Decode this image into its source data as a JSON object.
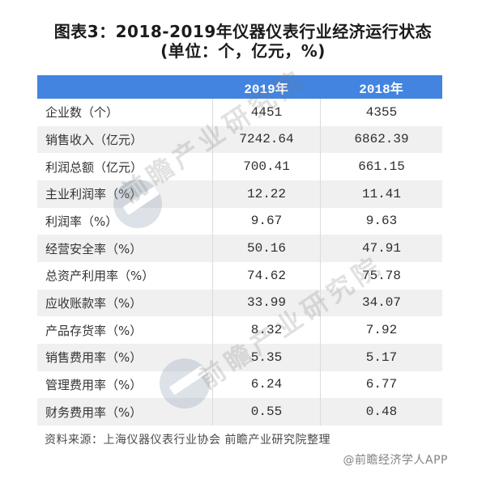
{
  "title": {
    "line1": "图表3：2018-2019年仪器仪表行业经济运行状态",
    "line2": "(单位：个，亿元，%)"
  },
  "table": {
    "headers": [
      "2019年",
      "2018年"
    ],
    "rows": [
      {
        "label": "企业数（个）",
        "y2019": "4451",
        "y2018": "4355"
      },
      {
        "label": "销售收入（亿元）",
        "y2019": "7242.64",
        "y2018": "6862.39"
      },
      {
        "label": "利润总额（亿元）",
        "y2019": "700.41",
        "y2018": "661.15"
      },
      {
        "label": "主业利润率（%）",
        "y2019": "12.22",
        "y2018": "11.41"
      },
      {
        "label": "利润率（%）",
        "y2019": "9.67",
        "y2018": "9.63"
      },
      {
        "label": "经营安全率（%）",
        "y2019": "50.16",
        "y2018": "47.91"
      },
      {
        "label": "总资产利用率（%）",
        "y2019": "74.62",
        "y2018": "75.78"
      },
      {
        "label": "应收账款率（%）",
        "y2019": "33.99",
        "y2018": "34.07"
      },
      {
        "label": "产品存货率（%）",
        "y2019": "8.32",
        "y2018": "7.92"
      },
      {
        "label": "销售费用率（%）",
        "y2019": "5.35",
        "y2018": "5.17"
      },
      {
        "label": "管理费用率（%）",
        "y2019": "6.24",
        "y2018": "6.77"
      },
      {
        "label": "财务费用率（%）",
        "y2019": "0.55",
        "y2018": "0.48"
      }
    ]
  },
  "footer": {
    "source": "资料来源：上海仪器仪表行业协会 前瞻产业研究院整理",
    "credit": "@前瞻经济学人APP"
  },
  "watermark": {
    "text": "前瞻产业研究院"
  },
  "colors": {
    "header_bg": "#4284E0",
    "header_text": "#FFFFFF",
    "stripe": "#F0F0F0",
    "divider": "#DBDBDB",
    "body_text": "#333333",
    "source_text": "#4A4A4A",
    "credit_text": "#828282"
  },
  "chart_data": {
    "type": "table",
    "title": "图表3：2018-2019年仪器仪表行业经济运行状态",
    "subtitle": "(单位：个，亿元，%)",
    "columns": [
      "",
      "2019年",
      "2018年"
    ],
    "categories": [
      "企业数（个）",
      "销售收入（亿元）",
      "利润总额（亿元）",
      "主业利润率（%）",
      "利润率（%）",
      "经营安全率（%）",
      "总资产利用率（%）",
      "应收账款率（%）",
      "产品存货率（%）",
      "销售费用率（%）",
      "管理费用率（%）",
      "财务费用率（%）"
    ],
    "series": [
      {
        "name": "2019年",
        "values": [
          4451,
          7242.64,
          700.41,
          12.22,
          9.67,
          50.16,
          74.62,
          33.99,
          8.32,
          5.35,
          6.24,
          0.55
        ]
      },
      {
        "name": "2018年",
        "values": [
          4355,
          6862.39,
          661.15,
          11.41,
          9.63,
          47.91,
          75.78,
          34.07,
          7.92,
          5.17,
          6.77,
          0.48
        ]
      }
    ],
    "source": "资料来源：上海仪器仪表行业协会 前瞻产业研究院整理",
    "credit": "@前瞻经济学人APP"
  }
}
